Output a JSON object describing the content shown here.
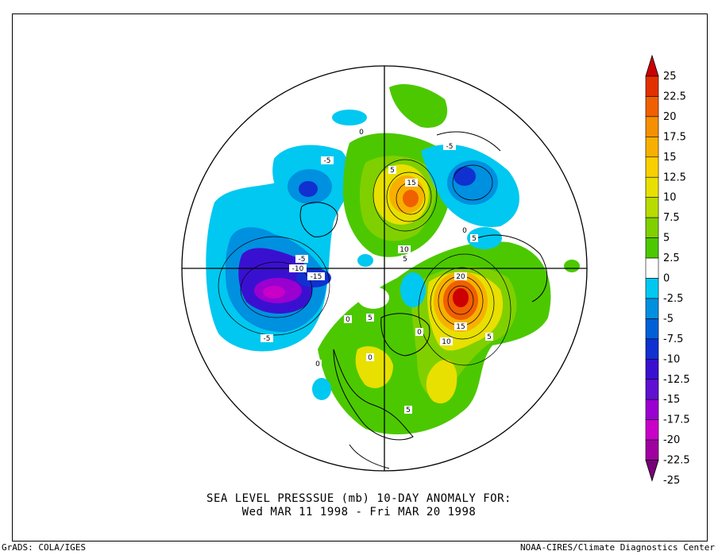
{
  "title": {
    "line1": "SEA LEVEL PRESSSUE (mb)   10-DAY ANOMALY FOR:",
    "line2": "Wed MAR 11 1998 - Fri MAR 20 1998"
  },
  "footer": {
    "left": "GrADS: COLA/IGES",
    "right": "NOAA-CIRES/Climate Diagnostics Center"
  },
  "legend": {
    "labels": [
      "25",
      "22.5",
      "20",
      "17.5",
      "15",
      "12.5",
      "10",
      "7.5",
      "5",
      "2.5",
      "0",
      "-2.5",
      "-5",
      "-7.5",
      "-10",
      "-12.5",
      "-15",
      "-17.5",
      "-20",
      "-22.5",
      "-25"
    ],
    "colors": [
      "#cc0000",
      "#e23000",
      "#f06000",
      "#f59000",
      "#f8b000",
      "#f8d000",
      "#e8e000",
      "#b8dc00",
      "#80d000",
      "#4cc800",
      "#ffffff",
      "#00c8f0",
      "#0090e0",
      "#0060d8",
      "#1030d0",
      "#3a10d0",
      "#6010d0",
      "#9a00d0",
      "#c800c8",
      "#a000a0",
      "#780078"
    ]
  },
  "map": {
    "projection": "north polar stereographic",
    "contour_labels": [
      {
        "id": "c1",
        "text": "0"
      },
      {
        "id": "c2",
        "text": "-5"
      },
      {
        "id": "c3",
        "text": "5"
      },
      {
        "id": "c4",
        "text": "15"
      },
      {
        "id": "c5",
        "text": "-5"
      },
      {
        "id": "c6",
        "text": "0"
      },
      {
        "id": "c7",
        "text": "5"
      },
      {
        "id": "c8",
        "text": "10"
      },
      {
        "id": "c9",
        "text": "5"
      },
      {
        "id": "c10",
        "text": "-5"
      },
      {
        "id": "c11",
        "text": "-10"
      },
      {
        "id": "c12",
        "text": "-15"
      },
      {
        "id": "c13",
        "text": "20"
      },
      {
        "id": "c14",
        "text": "15"
      },
      {
        "id": "c15",
        "text": "10"
      },
      {
        "id": "c16",
        "text": "5"
      },
      {
        "id": "c17",
        "text": "5"
      },
      {
        "id": "c18",
        "text": "0"
      },
      {
        "id": "c19",
        "text": "-5"
      },
      {
        "id": "c20",
        "text": "0"
      },
      {
        "id": "c21",
        "text": "5"
      },
      {
        "id": "c22",
        "text": "0"
      },
      {
        "id": "c23",
        "text": "0"
      }
    ]
  }
}
